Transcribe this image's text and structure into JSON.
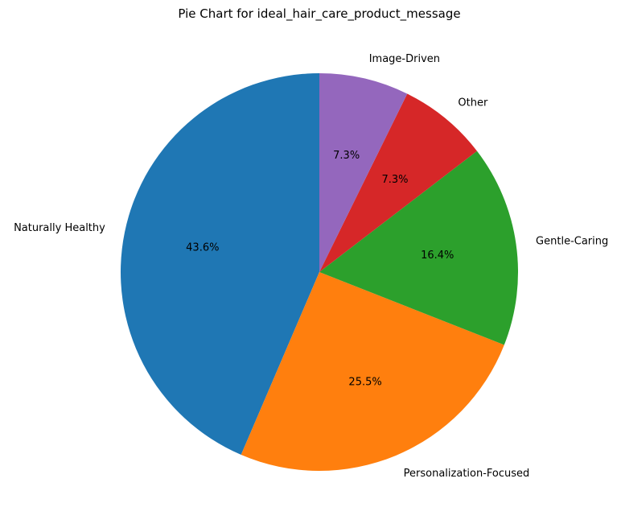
{
  "chart_data": {
    "type": "pie",
    "title": "Pie Chart for ideal_hair_care_product_message",
    "start_angle": "top",
    "direction": "counter-clockwise",
    "slices": [
      {
        "label": "Naturally Healthy",
        "value": 43.6,
        "pct_label": "43.6%",
        "color": "#1f77b4"
      },
      {
        "label": "Personalization-Focused",
        "value": 25.5,
        "pct_label": "25.5%",
        "color": "#ff7f0e"
      },
      {
        "label": "Gentle-Caring",
        "value": 16.4,
        "pct_label": "16.4%",
        "color": "#2ca02c"
      },
      {
        "label": "Other",
        "value": 7.3,
        "pct_label": "7.3%",
        "color": "#d62728"
      },
      {
        "label": "Image-Driven",
        "value": 7.3,
        "pct_label": "7.3%",
        "color": "#9467bd"
      }
    ]
  }
}
